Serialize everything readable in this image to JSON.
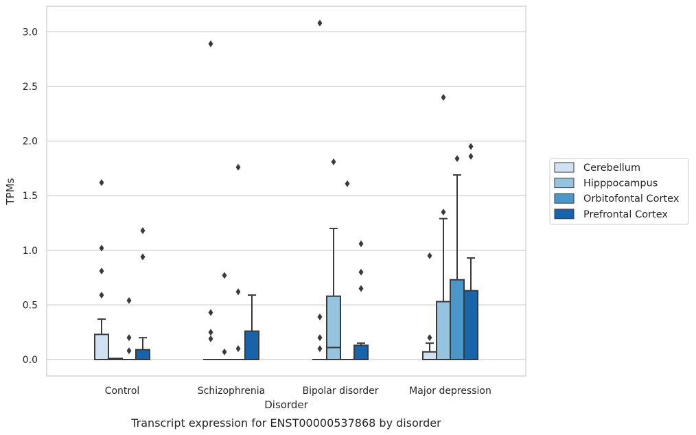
{
  "chart_data": {
    "type": "box",
    "title": "",
    "caption": "Transcript expression for ENST00000537868 by disorder",
    "xlabel": "Disorder",
    "ylabel": "TPMs",
    "ylim": [
      -0.15,
      3.25
    ],
    "yticks": [
      0.0,
      0.5,
      1.0,
      1.5,
      2.0,
      2.5,
      3.0
    ],
    "ytick_labels": [
      "0.0",
      "0.5",
      "1.0",
      "1.5",
      "2.0",
      "2.5",
      "3.0"
    ],
    "grid": "horizontal",
    "legend_position": "right",
    "categories": [
      "Control",
      "Schizophrenia",
      "Bipolar disorder",
      "Major depression"
    ],
    "series": [
      {
        "name": "Cerebellum",
        "color": "#d0e1f2",
        "boxes": [
          {
            "q1": 0.0,
            "median": 0.0,
            "q3": 0.23,
            "whisker_low": 0.0,
            "whisker_high": 0.37,
            "outliers": [
              0.59,
              0.81,
              1.02,
              1.62
            ]
          },
          {
            "q1": 0.0,
            "median": 0.0,
            "q3": 0.0,
            "whisker_low": 0.0,
            "whisker_high": 0.0,
            "outliers": [
              0.19,
              0.25,
              0.43,
              2.89
            ]
          },
          {
            "q1": 0.0,
            "median": 0.0,
            "q3": 0.0,
            "whisker_low": 0.0,
            "whisker_high": 0.0,
            "outliers": [
              0.1,
              0.2,
              0.39,
              3.08
            ]
          },
          {
            "q1": 0.0,
            "median": 0.0,
            "q3": 0.07,
            "whisker_low": 0.0,
            "whisker_high": 0.15,
            "outliers": [
              0.2,
              0.95
            ]
          }
        ]
      },
      {
        "name": "Hipppocampus",
        "color": "#94c4df",
        "boxes": [
          {
            "q1": 0.0,
            "median": 0.0,
            "q3": 0.01,
            "whisker_low": 0.0,
            "whisker_high": 0.01,
            "outliers": []
          },
          {
            "q1": 0.0,
            "median": 0.0,
            "q3": 0.0,
            "whisker_low": 0.0,
            "whisker_high": 0.0,
            "outliers": [
              0.07,
              0.77
            ]
          },
          {
            "q1": 0.0,
            "median": 0.11,
            "q3": 0.58,
            "whisker_low": 0.0,
            "whisker_high": 1.2,
            "outliers": [
              1.81
            ]
          },
          {
            "q1": 0.0,
            "median": 0.0,
            "q3": 0.53,
            "whisker_low": 0.0,
            "whisker_high": 1.29,
            "outliers": [
              1.35,
              2.4
            ]
          }
        ]
      },
      {
        "name": "Orbitofontal Cortex",
        "color": "#4a98c9",
        "boxes": [
          {
            "q1": 0.0,
            "median": 0.0,
            "q3": 0.0,
            "whisker_low": 0.0,
            "whisker_high": 0.0,
            "outliers": [
              0.08,
              0.2,
              0.54
            ]
          },
          {
            "q1": 0.0,
            "median": 0.0,
            "q3": 0.0,
            "whisker_low": 0.0,
            "whisker_high": 0.0,
            "outliers": [
              0.1,
              0.62,
              1.76
            ]
          },
          {
            "q1": 0.0,
            "median": 0.0,
            "q3": 0.0,
            "whisker_low": 0.0,
            "whisker_high": 0.0,
            "outliers": [
              1.61
            ]
          },
          {
            "q1": 0.0,
            "median": 0.0,
            "q3": 0.73,
            "whisker_low": 0.0,
            "whisker_high": 1.69,
            "outliers": [
              1.84
            ]
          }
        ]
      },
      {
        "name": "Prefrontal Cortex",
        "color": "#1764ab",
        "boxes": [
          {
            "q1": 0.0,
            "median": 0.0,
            "q3": 0.09,
            "whisker_low": 0.0,
            "whisker_high": 0.2,
            "outliers": [
              0.94,
              1.18
            ]
          },
          {
            "q1": 0.0,
            "median": 0.0,
            "q3": 0.26,
            "whisker_low": 0.0,
            "whisker_high": 0.59,
            "outliers": []
          },
          {
            "q1": 0.0,
            "median": 0.0,
            "q3": 0.13,
            "whisker_low": 0.0,
            "whisker_high": 0.15,
            "outliers": [
              0.65,
              0.8,
              1.06
            ]
          },
          {
            "q1": 0.0,
            "median": 0.0,
            "q3": 0.63,
            "whisker_low": 0.0,
            "whisker_high": 0.93,
            "outliers": [
              1.86,
              1.95
            ]
          }
        ]
      }
    ]
  }
}
